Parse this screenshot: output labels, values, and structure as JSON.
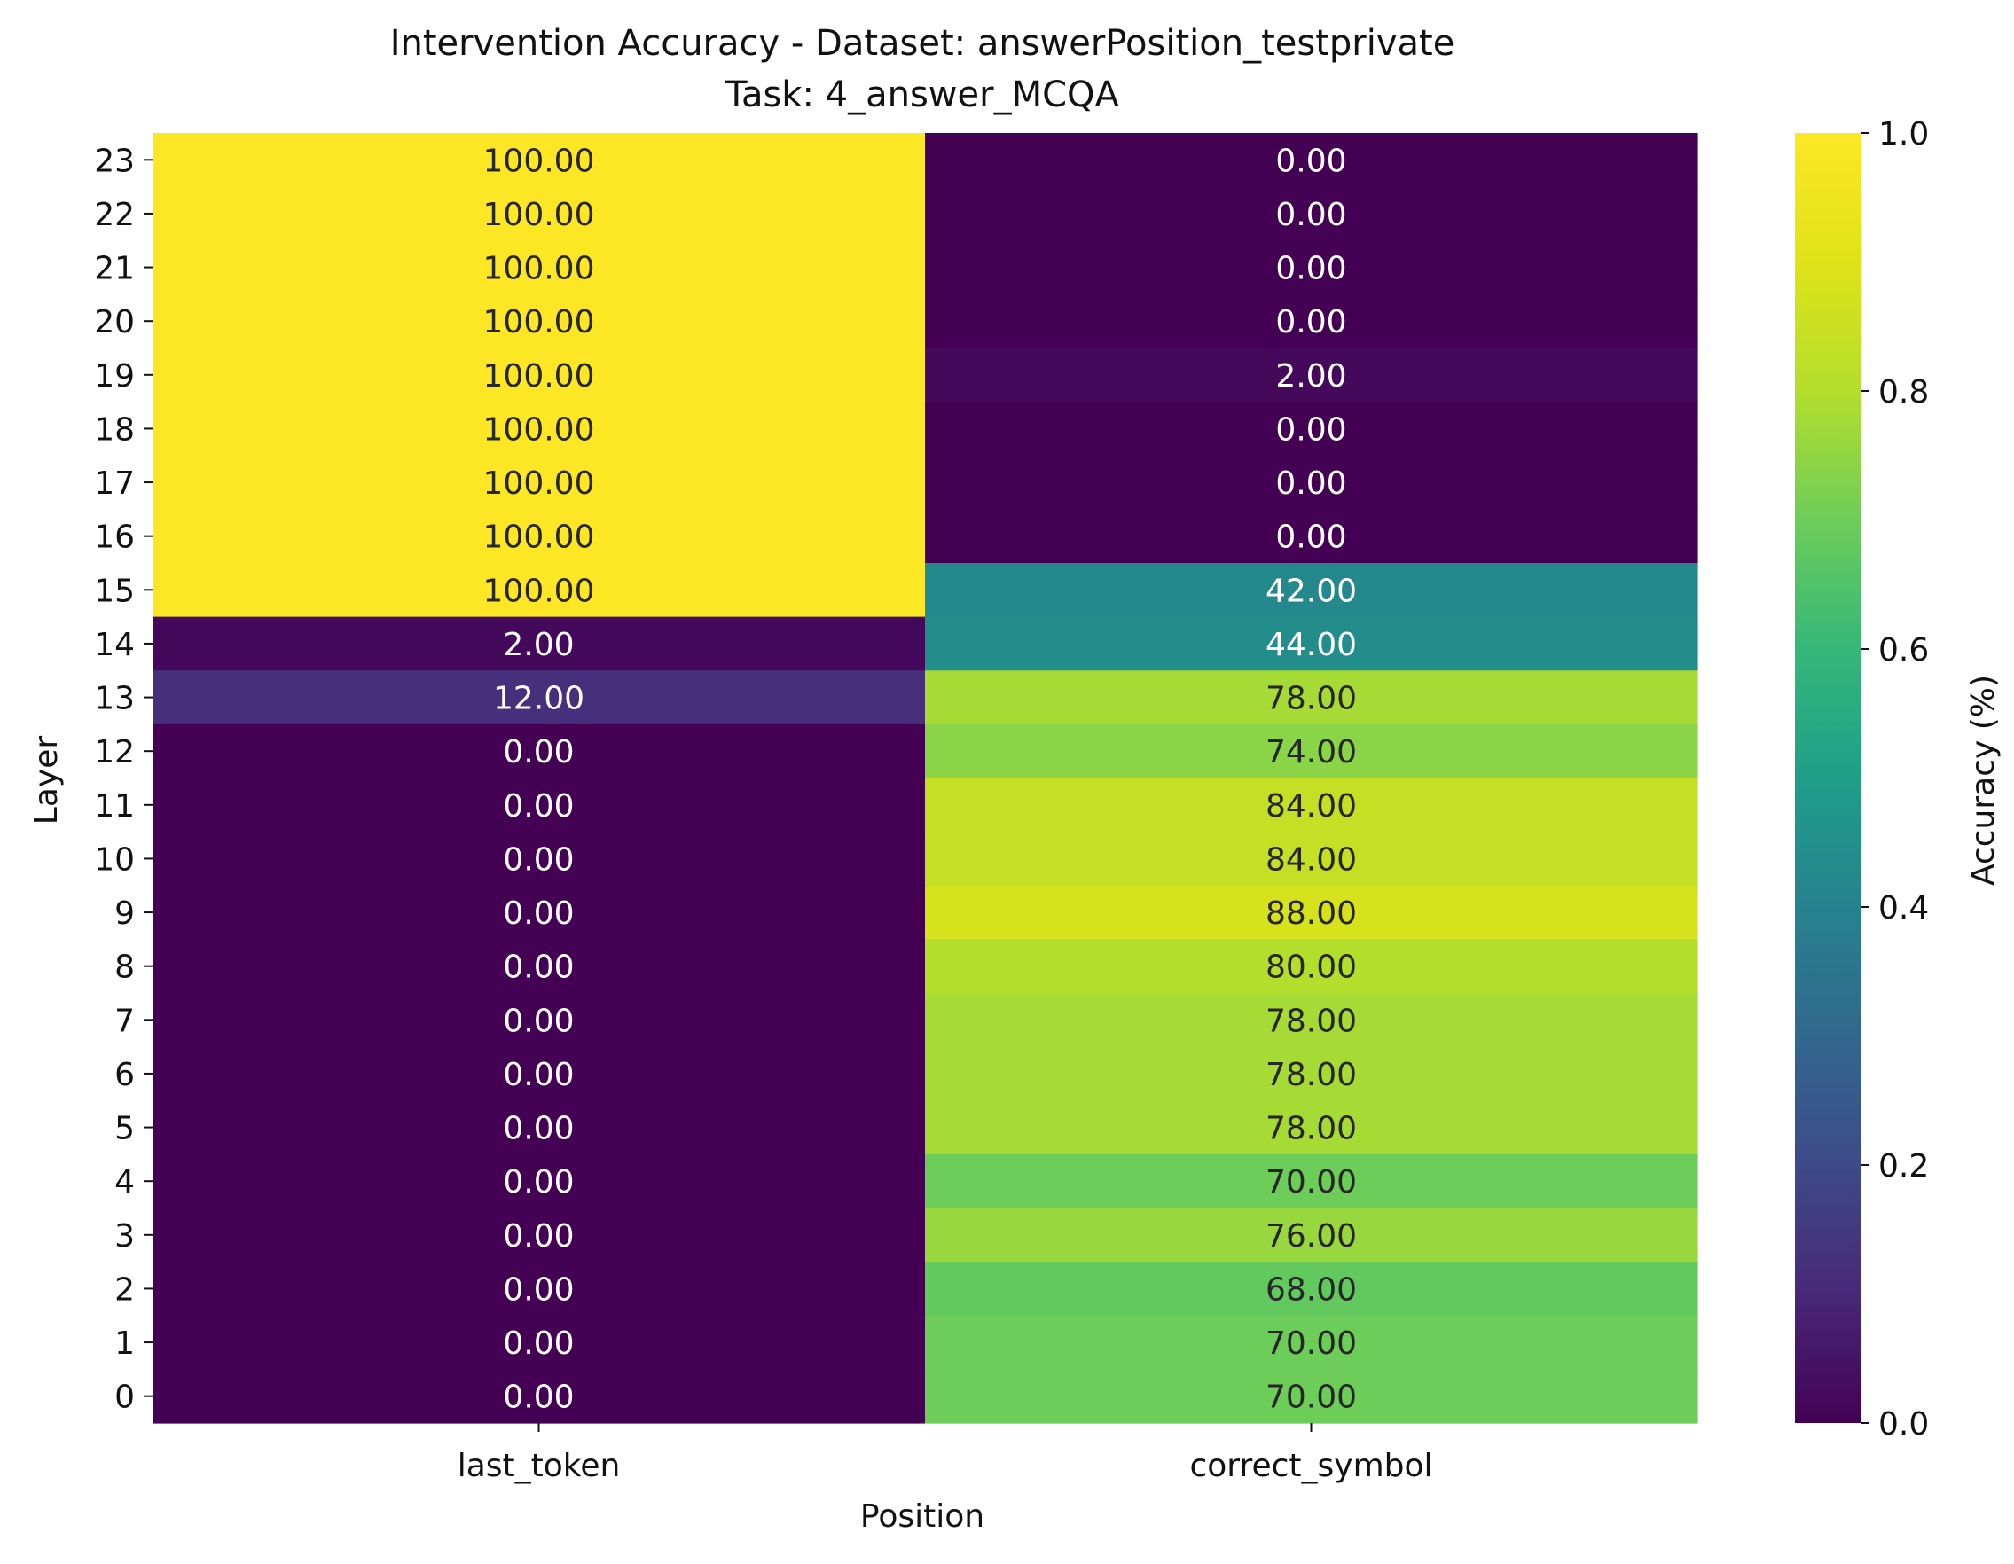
{
  "chart_data": {
    "type": "heatmap",
    "title": "Intervention Accuracy - Dataset: answerPosition_testprivate",
    "subtitle": "Task: 4_answer_MCQA",
    "xlabel": "Position",
    "ylabel": "Layer",
    "colorbar_label": "Accuracy (%)",
    "colorbar_ticks": [
      "0.0",
      "0.2",
      "0.4",
      "0.6",
      "0.8",
      "1.0"
    ],
    "colorbar_range": [
      0,
      1
    ],
    "colormap": "viridis",
    "x_categories": [
      "last_token",
      "correct_symbol"
    ],
    "y_categories": [
      "23",
      "22",
      "21",
      "20",
      "19",
      "18",
      "17",
      "16",
      "15",
      "14",
      "13",
      "12",
      "11",
      "10",
      "9",
      "8",
      "7",
      "6",
      "5",
      "4",
      "3",
      "2",
      "1",
      "0"
    ],
    "values": [
      [
        100.0,
        0.0
      ],
      [
        100.0,
        0.0
      ],
      [
        100.0,
        0.0
      ],
      [
        100.0,
        0.0
      ],
      [
        100.0,
        2.0
      ],
      [
        100.0,
        0.0
      ],
      [
        100.0,
        0.0
      ],
      [
        100.0,
        0.0
      ],
      [
        100.0,
        42.0
      ],
      [
        2.0,
        44.0
      ],
      [
        12.0,
        78.0
      ],
      [
        0.0,
        74.0
      ],
      [
        0.0,
        84.0
      ],
      [
        0.0,
        84.0
      ],
      [
        0.0,
        88.0
      ],
      [
        0.0,
        80.0
      ],
      [
        0.0,
        78.0
      ],
      [
        0.0,
        78.0
      ],
      [
        0.0,
        78.0
      ],
      [
        0.0,
        70.0
      ],
      [
        0.0,
        76.0
      ],
      [
        0.0,
        68.0
      ],
      [
        0.0,
        70.0
      ],
      [
        0.0,
        70.0
      ]
    ],
    "value_format": "2 decimals",
    "grid": false,
    "legend": "colorbar right"
  }
}
